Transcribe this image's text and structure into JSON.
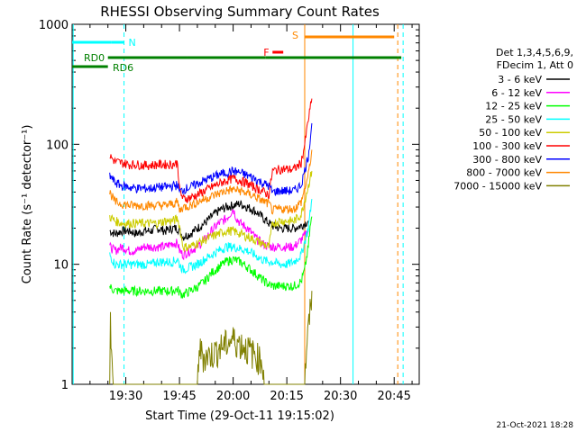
{
  "chart_data": {
    "type": "line",
    "title": "RHESSI Observing Summary Count Rates",
    "xlabel": "Start Time (29-Oct-11 19:15:02)",
    "ylabel": "Count Rate (s⁻¹ detector⁻¹)",
    "y_scale": "log",
    "ylim": [
      1,
      1000
    ],
    "y_ticks": [
      1,
      10,
      100,
      1000
    ],
    "y_tick_labels": [
      "1",
      "10",
      "100",
      "1000"
    ],
    "x_ticks": [
      "19:30",
      "19:45",
      "20:00",
      "20:15",
      "20:30",
      "20:45"
    ],
    "x_tick_minutes": [
      30,
      45,
      60,
      75,
      90,
      105
    ],
    "x_range_minutes": [
      15,
      112
    ],
    "legend_header": [
      "Det 1,3,4,5,6,9,",
      "FDecim 1, Att 0"
    ],
    "series": [
      {
        "name": "3 - 6 keV",
        "color": "#000000",
        "values": [
          [
            25.5,
            19
          ],
          [
            27,
            18
          ],
          [
            29,
            19
          ],
          [
            31,
            19
          ],
          [
            33,
            18
          ],
          [
            35,
            19
          ],
          [
            37,
            19
          ],
          [
            39,
            20
          ],
          [
            41,
            19
          ],
          [
            43,
            20
          ],
          [
            44.5,
            20
          ],
          [
            45,
            19
          ],
          [
            46,
            17
          ],
          [
            48,
            18
          ],
          [
            50,
            20
          ],
          [
            52,
            22
          ],
          [
            54,
            25
          ],
          [
            56,
            28
          ],
          [
            58,
            30
          ],
          [
            60,
            31
          ],
          [
            62,
            32
          ],
          [
            64,
            30
          ],
          [
            66,
            28
          ],
          [
            68,
            25
          ],
          [
            70,
            22
          ],
          [
            71,
            21
          ],
          [
            73,
            20
          ],
          [
            75,
            20
          ],
          [
            77,
            20
          ],
          [
            79,
            21
          ],
          [
            81,
            23
          ]
        ]
      },
      {
        "name": "6 - 12 keV",
        "color": "#ff00ff",
        "values": [
          [
            25.5,
            14
          ],
          [
            27,
            13
          ],
          [
            29,
            14
          ],
          [
            31,
            13
          ],
          [
            33,
            13
          ],
          [
            35,
            14
          ],
          [
            37,
            14
          ],
          [
            39,
            14
          ],
          [
            41,
            14
          ],
          [
            43,
            15
          ],
          [
            44.5,
            15
          ],
          [
            45,
            13
          ],
          [
            46,
            12
          ],
          [
            48,
            13
          ],
          [
            50,
            14
          ],
          [
            52,
            16
          ],
          [
            54,
            19
          ],
          [
            56,
            22
          ],
          [
            58,
            24
          ],
          [
            59,
            26
          ],
          [
            60,
            29
          ],
          [
            61,
            24
          ],
          [
            62,
            22
          ],
          [
            64,
            20
          ],
          [
            66,
            17
          ],
          [
            68,
            15
          ],
          [
            70,
            14
          ],
          [
            71,
            14
          ],
          [
            73,
            14
          ],
          [
            75,
            14
          ],
          [
            77,
            14
          ],
          [
            79,
            16
          ],
          [
            81,
            19
          ]
        ]
      },
      {
        "name": "12 - 25 keV",
        "color": "#00ff00",
        "values": [
          [
            25.5,
            6.5
          ],
          [
            27,
            6
          ],
          [
            29,
            6
          ],
          [
            31,
            6
          ],
          [
            33,
            6
          ],
          [
            35,
            6
          ],
          [
            37,
            6
          ],
          [
            39,
            6
          ],
          [
            41,
            6
          ],
          [
            43,
            6
          ],
          [
            44.5,
            6.2
          ],
          [
            45,
            5.8
          ],
          [
            46,
            5.6
          ],
          [
            48,
            6
          ],
          [
            50,
            6.5
          ],
          [
            52,
            7.2
          ],
          [
            54,
            8.5
          ],
          [
            56,
            9.5
          ],
          [
            58,
            10.5
          ],
          [
            60,
            11
          ],
          [
            62,
            10.5
          ],
          [
            64,
            9.5
          ],
          [
            66,
            8.5
          ],
          [
            68,
            7.5
          ],
          [
            70,
            6.8
          ],
          [
            71,
            6.6
          ],
          [
            73,
            6.6
          ],
          [
            75,
            6.6
          ],
          [
            77,
            6.6
          ],
          [
            79,
            7.2
          ],
          [
            80,
            9
          ],
          [
            81,
            14
          ],
          [
            81.5,
            20
          ],
          [
            82,
            25
          ]
        ]
      },
      {
        "name": "25 - 50 keV",
        "color": "#00ffff",
        "values": [
          [
            25.5,
            12
          ],
          [
            27,
            10
          ],
          [
            29,
            10
          ],
          [
            31,
            10
          ],
          [
            33,
            10
          ],
          [
            35,
            10
          ],
          [
            37,
            10
          ],
          [
            39,
            10.5
          ],
          [
            41,
            10.5
          ],
          [
            43,
            10.5
          ],
          [
            44.5,
            11
          ],
          [
            45,
            10
          ],
          [
            46,
            9
          ],
          [
            48,
            9.5
          ],
          [
            50,
            10
          ],
          [
            52,
            11
          ],
          [
            54,
            12
          ],
          [
            56,
            13
          ],
          [
            58,
            14
          ],
          [
            60,
            14
          ],
          [
            62,
            13.5
          ],
          [
            64,
            13
          ],
          [
            66,
            12
          ],
          [
            68,
            11
          ],
          [
            70,
            10.5
          ],
          [
            71,
            10.5
          ],
          [
            73,
            10
          ],
          [
            75,
            10
          ],
          [
            77,
            10.5
          ],
          [
            79,
            12
          ],
          [
            81,
            20
          ],
          [
            82,
            35
          ]
        ]
      },
      {
        "name": "50 - 100 keV",
        "color": "#cccc00",
        "values": [
          [
            25.5,
            25
          ],
          [
            27,
            23
          ],
          [
            29,
            22
          ],
          [
            31,
            22
          ],
          [
            33,
            22
          ],
          [
            35,
            22
          ],
          [
            37,
            22
          ],
          [
            39,
            22
          ],
          [
            41,
            23
          ],
          [
            43,
            23
          ],
          [
            44.5,
            24
          ],
          [
            45,
            21
          ],
          [
            46,
            14
          ],
          [
            48,
            14
          ],
          [
            50,
            15
          ],
          [
            52,
            16
          ],
          [
            54,
            17
          ],
          [
            56,
            18
          ],
          [
            58,
            19
          ],
          [
            60,
            19
          ],
          [
            62,
            18
          ],
          [
            64,
            17
          ],
          [
            66,
            16
          ],
          [
            68,
            15
          ],
          [
            70,
            14
          ],
          [
            71,
            22
          ],
          [
            73,
            23
          ],
          [
            75,
            23
          ],
          [
            77,
            23
          ],
          [
            79,
            26
          ],
          [
            81,
            45
          ],
          [
            82,
            60
          ]
        ]
      },
      {
        "name": "100 - 300 keV",
        "color": "#ff0000",
        "values": [
          [
            25.5,
            80
          ],
          [
            27,
            72
          ],
          [
            29,
            70
          ],
          [
            31,
            68
          ],
          [
            33,
            68
          ],
          [
            35,
            67
          ],
          [
            37,
            67
          ],
          [
            39,
            68
          ],
          [
            41,
            68
          ],
          [
            43,
            68
          ],
          [
            44.5,
            70
          ],
          [
            45,
            42
          ],
          [
            46,
            35
          ],
          [
            48,
            36
          ],
          [
            50,
            38
          ],
          [
            52,
            41
          ],
          [
            54,
            44
          ],
          [
            56,
            47
          ],
          [
            58,
            50
          ],
          [
            60,
            52
          ],
          [
            62,
            50
          ],
          [
            64,
            47
          ],
          [
            66,
            44
          ],
          [
            68,
            41
          ],
          [
            70,
            38
          ],
          [
            71,
            60
          ],
          [
            73,
            62
          ],
          [
            75,
            62
          ],
          [
            77,
            62
          ],
          [
            79,
            70
          ],
          [
            80,
            100
          ],
          [
            81,
            160
          ],
          [
            82,
            240
          ]
        ]
      },
      {
        "name": "300 - 800 keV",
        "color": "#0000ff",
        "values": [
          [
            25.5,
            55
          ],
          [
            27,
            48
          ],
          [
            29,
            45
          ],
          [
            31,
            44
          ],
          [
            33,
            43
          ],
          [
            35,
            43
          ],
          [
            37,
            43
          ],
          [
            39,
            44
          ],
          [
            41,
            44
          ],
          [
            43,
            45
          ],
          [
            44.5,
            46
          ],
          [
            45,
            40
          ],
          [
            46,
            42
          ],
          [
            48,
            44
          ],
          [
            50,
            47
          ],
          [
            52,
            50
          ],
          [
            54,
            53
          ],
          [
            56,
            56
          ],
          [
            58,
            58
          ],
          [
            60,
            60
          ],
          [
            62,
            58
          ],
          [
            64,
            55
          ],
          [
            66,
            52
          ],
          [
            68,
            48
          ],
          [
            70,
            45
          ],
          [
            71,
            40
          ],
          [
            73,
            41
          ],
          [
            75,
            41
          ],
          [
            77,
            41
          ],
          [
            79,
            46
          ],
          [
            81,
            80
          ],
          [
            82,
            150
          ]
        ]
      },
      {
        "name": "800 - 7000 keV",
        "color": "#ff8800",
        "values": [
          [
            25.5,
            40
          ],
          [
            27,
            33
          ],
          [
            29,
            32
          ],
          [
            31,
            31
          ],
          [
            33,
            31
          ],
          [
            35,
            31
          ],
          [
            37,
            31
          ],
          [
            39,
            31
          ],
          [
            41,
            31
          ],
          [
            43,
            32
          ],
          [
            44.5,
            33
          ],
          [
            45,
            28
          ],
          [
            46,
            30
          ],
          [
            48,
            31
          ],
          [
            50,
            33
          ],
          [
            52,
            35
          ],
          [
            54,
            37
          ],
          [
            56,
            39
          ],
          [
            58,
            41
          ],
          [
            60,
            42
          ],
          [
            62,
            41
          ],
          [
            64,
            39
          ],
          [
            66,
            37
          ],
          [
            68,
            34
          ],
          [
            70,
            32
          ],
          [
            71,
            28
          ],
          [
            73,
            29
          ],
          [
            75,
            29
          ],
          [
            77,
            29
          ],
          [
            79,
            33
          ],
          [
            81,
            55
          ],
          [
            82,
            90
          ]
        ]
      },
      {
        "name": "7000 - 15000 keV",
        "color": "#808000",
        "values": [
          [
            25.5,
            1
          ],
          [
            25.7,
            3.5
          ],
          [
            26,
            1.5
          ],
          [
            26.5,
            1
          ],
          [
            50,
            1
          ],
          [
            50.5,
            2
          ],
          [
            52,
            1.7
          ],
          [
            54,
            1.8
          ],
          [
            56,
            2
          ],
          [
            58,
            2.2
          ],
          [
            60,
            2.4
          ],
          [
            62,
            2.2
          ],
          [
            64,
            2
          ],
          [
            66,
            1.8
          ],
          [
            68,
            1.6
          ],
          [
            69,
            1
          ],
          [
            80,
            1
          ],
          [
            80.5,
            2
          ],
          [
            81.5,
            4
          ],
          [
            82,
            6
          ]
        ]
      }
    ],
    "annotations": [
      {
        "text": "N",
        "color": "#00ffff",
        "y": 650,
        "x_start": 15,
        "x_end": 29.5
      },
      {
        "text": "S",
        "color": "#ff8800",
        "y": 650,
        "x_start": 80,
        "x_end": 105
      },
      {
        "text": "F",
        "color": "#ff0000",
        "y": 570,
        "x_start": 71,
        "x_end": 74
      },
      {
        "text": "RD0",
        "color": "#008000",
        "y": 500,
        "x_start": 25,
        "x_end": 107
      },
      {
        "text": "RD6",
        "color": "#008000",
        "y": 440,
        "x_start": 15,
        "x_end": 25
      }
    ],
    "footer_timestamp": "21-Oct-2021 18:28"
  }
}
